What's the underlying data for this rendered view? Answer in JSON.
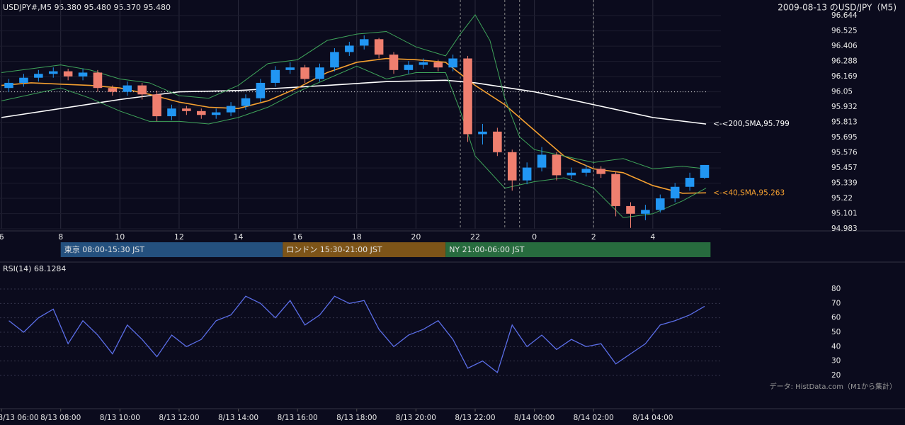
{
  "header": {
    "symbol": "USDJPY#,M5 95.380 95.480 95.370 95.480",
    "title": "2009-08-13 のUSD/JPY（M5)",
    "source": "データ: HistData.com（M1から集計）"
  },
  "chart_data": [
    {
      "type": "candlestick",
      "up_color": "#2196f3",
      "down_color": "#ef7f6f",
      "grid": true,
      "x": [
        6.25,
        6.75,
        7.25,
        7.75,
        8.25,
        8.75,
        9.25,
        9.75,
        10.25,
        10.75,
        11.25,
        11.75,
        12.25,
        12.75,
        13.25,
        13.75,
        14.25,
        14.75,
        15.25,
        15.75,
        16.25,
        16.75,
        17.25,
        17.75,
        18.25,
        18.75,
        19.25,
        19.75,
        20.25,
        20.75,
        21.25,
        21.75,
        22.25,
        22.75,
        23.25,
        23.75,
        24.25,
        24.75,
        25.25,
        25.75,
        26.25,
        26.75,
        27.25,
        27.75,
        28.25,
        28.75,
        29.25,
        29.75
      ],
      "open": [
        96.08,
        96.12,
        96.16,
        96.19,
        96.21,
        96.17,
        96.2,
        96.08,
        96.05,
        96.1,
        96.03,
        95.86,
        95.92,
        95.9,
        95.87,
        95.89,
        95.94,
        96.0,
        96.12,
        96.22,
        96.24,
        96.15,
        96.24,
        96.36,
        96.41,
        96.46,
        96.34,
        96.22,
        96.26,
        96.28,
        96.24,
        96.31,
        95.72,
        95.74,
        95.58,
        95.36,
        95.46,
        95.56,
        95.4,
        95.42,
        95.45,
        95.41,
        95.16,
        95.1,
        95.13,
        95.22,
        95.31,
        95.38
      ],
      "high": [
        96.15,
        96.19,
        96.22,
        96.24,
        96.23,
        96.23,
        96.22,
        96.1,
        96.13,
        96.12,
        96.06,
        95.95,
        95.94,
        95.92,
        95.92,
        95.97,
        96.03,
        96.15,
        96.25,
        96.28,
        96.26,
        96.27,
        96.39,
        96.44,
        96.49,
        96.47,
        96.36,
        96.29,
        96.31,
        96.3,
        96.34,
        96.33,
        95.8,
        95.77,
        95.6,
        95.5,
        95.62,
        95.58,
        95.46,
        95.48,
        95.47,
        95.43,
        95.19,
        95.17,
        95.25,
        95.34,
        95.42,
        95.48
      ],
      "low": [
        96.05,
        96.09,
        96.13,
        96.16,
        96.14,
        96.14,
        96.05,
        96.02,
        96.02,
        95.99,
        95.82,
        95.83,
        95.87,
        95.84,
        95.84,
        95.86,
        95.91,
        95.97,
        96.09,
        96.19,
        96.12,
        96.13,
        96.21,
        96.33,
        96.38,
        96.31,
        96.19,
        96.19,
        96.23,
        96.21,
        96.21,
        95.66,
        95.64,
        95.55,
        95.28,
        95.33,
        95.43,
        95.36,
        95.37,
        95.39,
        95.38,
        95.08,
        94.99,
        95.05,
        95.11,
        95.19,
        95.28,
        95.37
      ],
      "close": [
        96.12,
        96.16,
        96.19,
        96.21,
        96.17,
        96.2,
        96.08,
        96.05,
        96.1,
        96.03,
        95.86,
        95.92,
        95.9,
        95.87,
        95.89,
        95.94,
        96.0,
        96.12,
        96.22,
        96.24,
        96.15,
        96.24,
        96.36,
        96.41,
        96.46,
        96.34,
        96.22,
        96.26,
        96.28,
        96.24,
        96.31,
        95.72,
        95.74,
        95.58,
        95.36,
        95.46,
        95.56,
        95.4,
        95.42,
        95.45,
        95.41,
        95.16,
        95.1,
        95.13,
        95.22,
        95.31,
        95.38,
        95.48
      ],
      "xlim": [
        5.95,
        30.3
      ],
      "ylim": [
        94.983,
        96.644
      ],
      "xticks": [
        6,
        8,
        10,
        12,
        14,
        16,
        18,
        20,
        22,
        {
          "value": 24,
          "label": "0"
        },
        {
          "value": 26,
          "label": "2"
        },
        {
          "value": 28,
          "label": "4"
        }
      ],
      "yticks": [
        94.983,
        95.101,
        95.22,
        95.339,
        95.457,
        95.576,
        95.695,
        95.813,
        95.932,
        96.05,
        96.169,
        96.288,
        96.406,
        96.525,
        96.644
      ],
      "hline": 96.05,
      "vlines": [
        21.5,
        23,
        23.5,
        26
      ],
      "overlays": [
        {
          "color": "#ffffff",
          "label": "<-<200,SMA,95.799",
          "x": [
            6,
            10,
            12,
            14,
            17,
            19,
            21,
            22,
            24,
            26,
            28,
            29.8
          ],
          "values": [
            95.85,
            95.99,
            96.05,
            96.06,
            96.1,
            96.13,
            96.14,
            96.12,
            96.05,
            95.95,
            95.85,
            95.799
          ]
        },
        {
          "color": "#f5a030",
          "label": "<-<40,SMA,95.263",
          "x": [
            6,
            7,
            8,
            9,
            10,
            11,
            12,
            13,
            14,
            15,
            16,
            17,
            18,
            19,
            20,
            21,
            22,
            23,
            24,
            25,
            26,
            27,
            28,
            29,
            29.8
          ],
          "values": [
            96.1,
            96.12,
            96.11,
            96.1,
            96.08,
            96.03,
            95.97,
            95.93,
            95.92,
            95.98,
            96.08,
            96.2,
            96.28,
            96.31,
            96.3,
            96.28,
            96.1,
            95.95,
            95.75,
            95.55,
            95.45,
            95.42,
            95.32,
            95.26,
            95.263
          ]
        },
        {
          "color": "#3fa45a",
          "x": [
            6,
            8,
            9,
            10,
            11,
            12,
            13,
            14,
            15,
            16,
            17,
            18,
            19,
            20,
            21,
            21.5,
            22,
            22.5,
            23,
            23.5,
            24,
            25,
            26,
            27,
            28,
            29,
            29.8
          ],
          "values": [
            96.2,
            96.26,
            96.22,
            96.15,
            96.12,
            96.02,
            96.0,
            96.1,
            96.27,
            96.3,
            96.45,
            96.5,
            96.52,
            96.4,
            96.33,
            96.5,
            96.65,
            96.45,
            96.0,
            95.7,
            95.6,
            95.55,
            95.5,
            95.53,
            95.45,
            95.47,
            95.45
          ]
        },
        {
          "color": "#3fa45a",
          "x": [
            6,
            8,
            9,
            10,
            11,
            12,
            13,
            14,
            15,
            16,
            17,
            18,
            19,
            20,
            21,
            21.5,
            22,
            23,
            24,
            25,
            26,
            27,
            28,
            29,
            29.8
          ],
          "values": [
            95.98,
            96.08,
            96.0,
            95.9,
            95.82,
            95.82,
            95.8,
            95.85,
            95.93,
            96.05,
            96.15,
            96.25,
            96.15,
            96.2,
            96.2,
            95.9,
            95.55,
            95.3,
            95.35,
            95.38,
            95.3,
            95.07,
            95.1,
            95.2,
            95.3
          ]
        }
      ],
      "sessions": [
        {
          "label": "東京 08:00-15:30 JST",
          "start": 8,
          "end": 15.5,
          "color": "#24507e"
        },
        {
          "label": "ロンドン 15:30-21:00 JST",
          "start": 15.5,
          "end": 21,
          "color": "#7d5418"
        },
        {
          "label": "NY 21:00-06:00 JST",
          "start": 21,
          "end": 29.95,
          "color": "#276b3e"
        }
      ]
    },
    {
      "type": "line",
      "title": "RSI(14) 68.1284",
      "color": "#5b6ee8",
      "grid": true,
      "x": [
        6.25,
        6.75,
        7.25,
        7.75,
        8.25,
        8.75,
        9.25,
        9.75,
        10.25,
        10.75,
        11.25,
        11.75,
        12.25,
        12.75,
        13.25,
        13.75,
        14.25,
        14.75,
        15.25,
        15.75,
        16.25,
        16.75,
        17.25,
        17.75,
        18.25,
        18.75,
        19.25,
        19.75,
        20.25,
        20.75,
        21.25,
        21.75,
        22.25,
        22.75,
        23.25,
        23.75,
        24.25,
        24.75,
        25.25,
        25.75,
        26.25,
        26.75,
        27.25,
        27.75,
        28.25,
        28.75,
        29.25,
        29.75
      ],
      "values": [
        58,
        50,
        60,
        66,
        42,
        58,
        48,
        35,
        55,
        45,
        33,
        48,
        40,
        45,
        58,
        62,
        75,
        70,
        60,
        72,
        55,
        62,
        75,
        70,
        72,
        52,
        40,
        48,
        52,
        58,
        45,
        25,
        30,
        22,
        55,
        40,
        48,
        38,
        45,
        40,
        42,
        28,
        35,
        42,
        55,
        58,
        62,
        68
      ],
      "xlim": [
        5.95,
        30.3
      ],
      "ylim": [
        10,
        90
      ],
      "yticks": [
        20,
        30,
        40,
        50,
        60,
        70,
        80
      ],
      "xticks": [
        {
          "value": 6,
          "label": "8/13 06:00"
        },
        {
          "value": 8,
          "label": "8/13 08:00"
        },
        {
          "value": 10,
          "label": "8/13 10:00"
        },
        {
          "value": 12,
          "label": "8/13 12:00"
        },
        {
          "value": 14,
          "label": "8/13 14:00"
        },
        {
          "value": 16,
          "label": "8/13 16:00"
        },
        {
          "value": 18,
          "label": "8/13 18:00"
        },
        {
          "value": 20,
          "label": "8/13 20:00"
        },
        {
          "value": 22,
          "label": "8/13 22:00"
        },
        {
          "value": 24,
          "label": "8/14 00:00"
        },
        {
          "value": 26,
          "label": "8/14 02:00"
        },
        {
          "value": 28,
          "label": "8/14 04:00"
        }
      ]
    }
  ]
}
